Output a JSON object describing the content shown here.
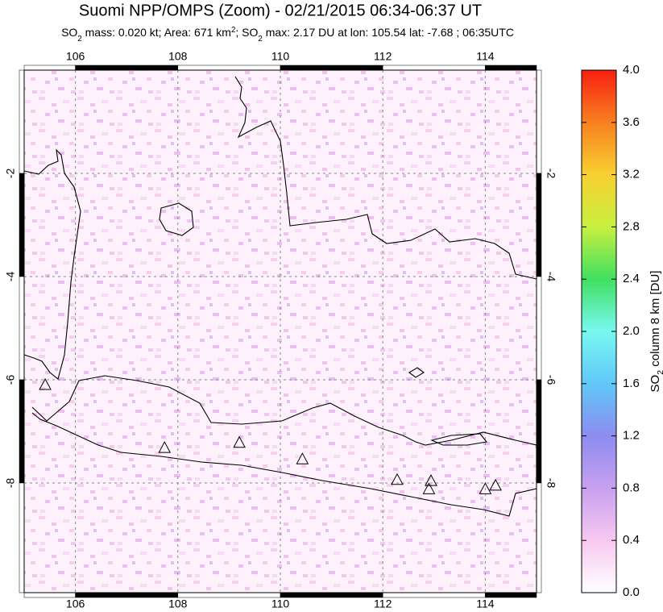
{
  "chart_data": {
    "type": "map",
    "title": "Suomi NPP/OMPS (Zoom) - 02/21/2015 06:34-06:37 UT",
    "subtitle": [
      {
        "text": "SO"
      },
      {
        "text": "2",
        "style": "sub"
      },
      {
        "text": " mass: 0.020 kt; Area: 671 km"
      },
      {
        "text": "2",
        "style": "sup"
      },
      {
        "text": "; SO"
      },
      {
        "text": "2",
        "style": "sub"
      },
      {
        "text": " max: 2.17 DU at lon: 105.54 lat: -7.68 ; 06:35UTC"
      }
    ],
    "xlim": [
      105,
      115
    ],
    "ylim": [
      -10.125,
      0
    ],
    "xticks": [
      106,
      108,
      110,
      112,
      114
    ],
    "yticks": [
      -2,
      -4,
      -6,
      -8
    ],
    "grid": true,
    "volcanoes": {
      "lon": [
        105.41,
        107.74,
        109.2,
        110.43,
        112.28,
        112.94,
        112.9,
        114.0,
        114.2
      ],
      "lat": [
        -6.11,
        -7.33,
        -7.23,
        -7.55,
        -7.95,
        -7.97,
        -8.13,
        -8.13,
        -8.06
      ]
    },
    "colorbar": {
      "label": [
        {
          "text": "SO"
        },
        {
          "text": "2",
          "style": "sub"
        },
        {
          "text": " column 8 km [DU]"
        }
      ],
      "lim": [
        0,
        4
      ],
      "ticks": [
        {
          "value": 0,
          "label": "0.0"
        },
        {
          "value": 0.4,
          "label": "0.4"
        },
        {
          "value": 0.8,
          "label": "0.8"
        },
        {
          "value": 1.2,
          "label": "1.2"
        },
        {
          "value": 1.6,
          "label": "1.6"
        },
        {
          "value": 2,
          "label": "2.0"
        },
        {
          "value": 2.4,
          "label": "2.4"
        },
        {
          "value": 2.8,
          "label": "2.8"
        },
        {
          "value": 3.2,
          "label": "3.2"
        },
        {
          "value": 3.6,
          "label": "3.6"
        },
        {
          "value": 4,
          "label": "4.0"
        }
      ],
      "colors": [
        "#ffffff",
        "#f7c8f0",
        "#c8a0f0",
        "#8c8cf0",
        "#60c8f8",
        "#78f8f0",
        "#40e060",
        "#c8f040",
        "#f8d030",
        "#f88020",
        "#f82010"
      ]
    }
  }
}
